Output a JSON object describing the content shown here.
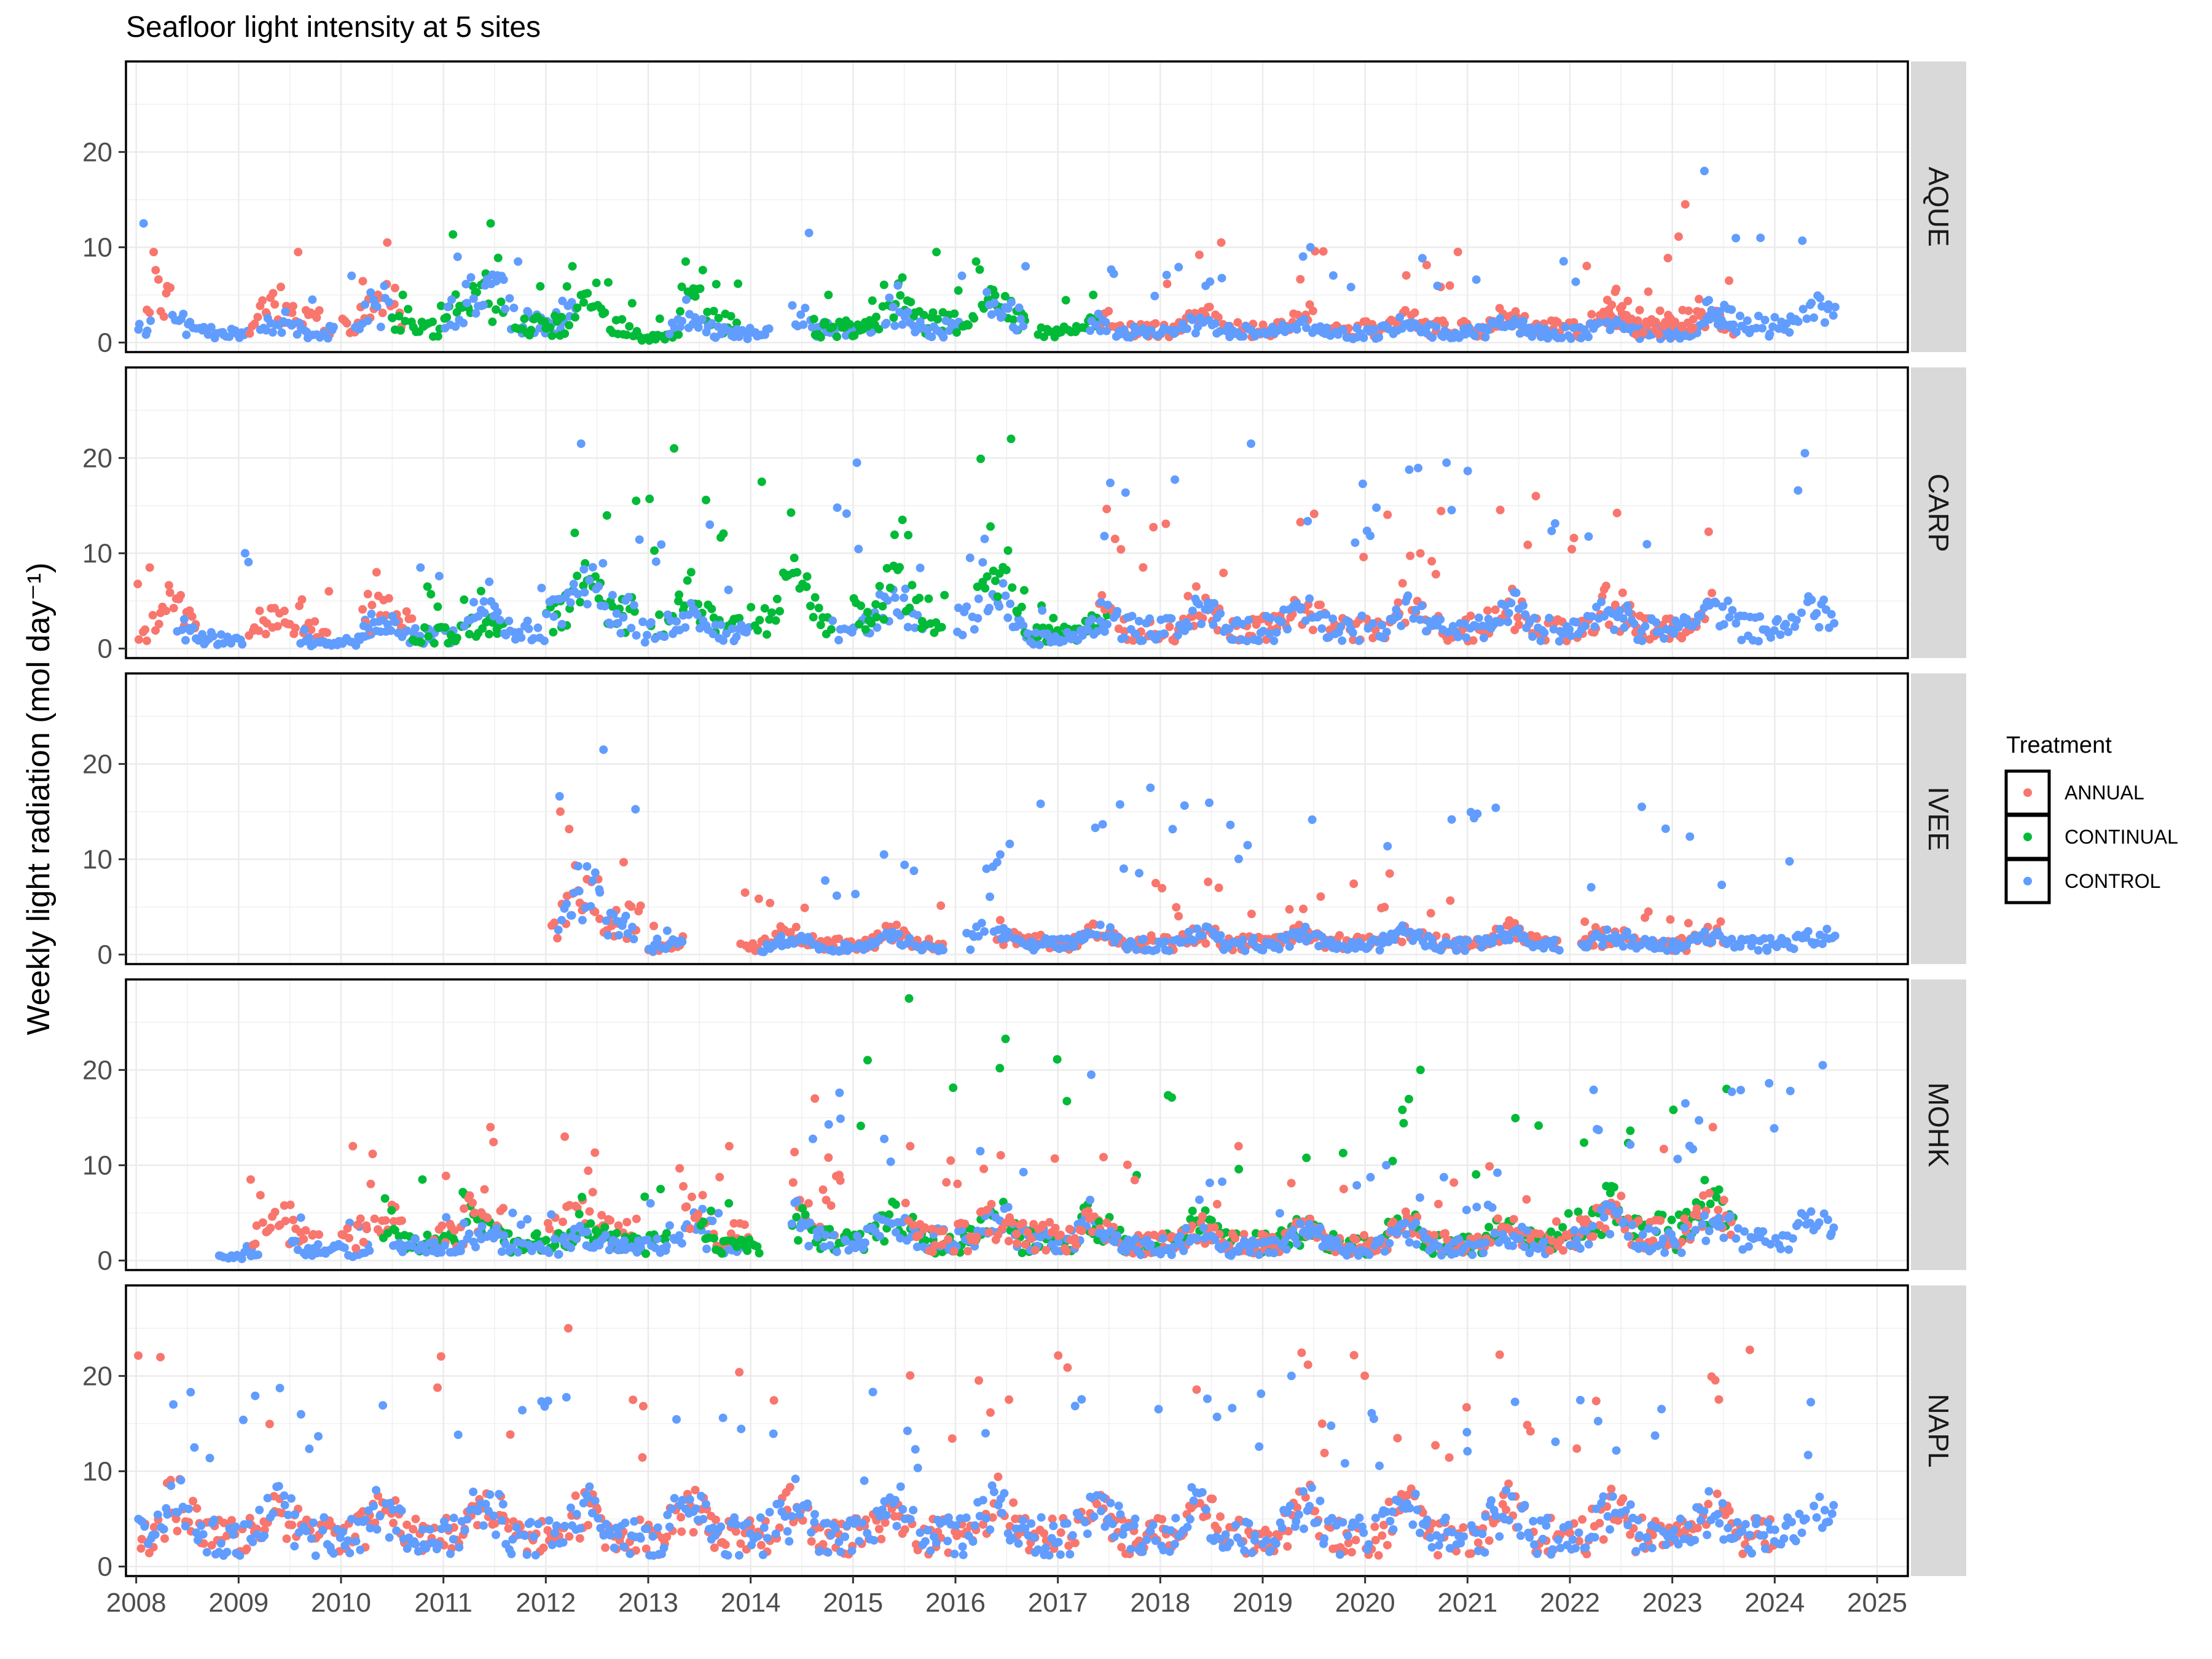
{
  "chart_data": {
    "type": "scatter",
    "title": "Seafloor light intensity at 5 sites",
    "ylabel": "Weekly light radiation (mol day⁻¹)",
    "xlabel": "",
    "x_ticks": [
      "2008",
      "2009",
      "2010",
      "2011",
      "2012",
      "2013",
      "2014",
      "2015",
      "2016",
      "2017",
      "2018",
      "2019",
      "2020",
      "2021",
      "2022",
      "2023",
      "2024",
      "2025"
    ],
    "xlim": [
      2007.9,
      2025.3
    ],
    "y_ticks": [
      0,
      10,
      20
    ],
    "ylim": [
      -1,
      29.5
    ],
    "grid": true,
    "facet_strip_position": "right",
    "legend": {
      "title": "Treatment",
      "position": "right",
      "items": [
        {
          "name": "ANNUAL",
          "color": "#F8766D"
        },
        {
          "name": "CONTINUAL",
          "color": "#00BA38"
        },
        {
          "name": "CONTROL",
          "color": "#619CFF"
        }
      ]
    },
    "panels": [
      {
        "site": "AQUE",
        "segments": [
          {
            "series": "CONTROL",
            "start": 2008.0,
            "end": 2008.15,
            "base": 2.0,
            "amp": 1.5,
            "peak": 12.5
          },
          {
            "series": "ANNUAL",
            "start": 2008.1,
            "end": 2008.35,
            "base": 3.0,
            "amp": 4.0,
            "peak": 9.5
          },
          {
            "series": "CONTROL",
            "start": 2008.35,
            "end": 2009.1,
            "base": 1.5,
            "amp": 1.5,
            "peak": 3.0
          },
          {
            "series": "ANNUAL",
            "start": 2009.1,
            "end": 2009.9,
            "base": 3.0,
            "amp": 3.0,
            "peak": 9.5
          },
          {
            "series": "CONTROL",
            "start": 2009.2,
            "end": 2009.95,
            "base": 1.5,
            "amp": 1.5,
            "peak": 4.5
          },
          {
            "series": "ANNUAL",
            "start": 2010.0,
            "end": 2010.6,
            "base": 3.5,
            "amp": 3.0,
            "peak": 10.5
          },
          {
            "series": "CONTROL",
            "start": 2010.1,
            "end": 2010.5,
            "base": 3.0,
            "amp": 2.0,
            "peak": 7.0
          },
          {
            "series": "CONTINUAL",
            "start": 2010.5,
            "end": 2011.0,
            "base": 2.0,
            "amp": 2.0,
            "peak": 5.0
          },
          {
            "series": "CONTINUAL",
            "start": 2011.0,
            "end": 2011.6,
            "base": 4.5,
            "amp": 2.5,
            "peak": 12.5
          },
          {
            "series": "CONTROL",
            "start": 2011.0,
            "end": 2011.7,
            "base": 4.5,
            "amp": 3.0,
            "peak": 9.0
          },
          {
            "series": "CONTROL",
            "start": 2011.7,
            "end": 2012.3,
            "base": 3.0,
            "amp": 2.5,
            "peak": 8.5
          },
          {
            "series": "CONTINUAL",
            "start": 2011.7,
            "end": 2012.9,
            "base": 2.5,
            "amp": 3.0,
            "peak": 8.0
          },
          {
            "series": "CONTINUAL",
            "start": 2012.9,
            "end": 2013.3,
            "base": 0.8,
            "amp": 0.8,
            "peak": 2.5
          },
          {
            "series": "CONTINUAL",
            "start": 2013.3,
            "end": 2013.9,
            "base": 3.5,
            "amp": 3.0,
            "peak": 8.5
          },
          {
            "series": "CONTROL",
            "start": 2013.2,
            "end": 2014.2,
            "base": 1.5,
            "amp": 1.5,
            "peak": 4.5
          },
          {
            "series": "CONTROL",
            "start": 2014.4,
            "end": 2015.2,
            "base": 2.0,
            "amp": 2.0,
            "peak": 11.5
          },
          {
            "series": "CONTINUAL",
            "start": 2014.6,
            "end": 2015.3,
            "base": 2.0,
            "amp": 2.5,
            "peak": 5.0
          },
          {
            "series": "CONTINUAL",
            "start": 2015.3,
            "end": 2016.0,
            "base": 3.0,
            "amp": 3.5,
            "peak": 9.5
          },
          {
            "series": "CONTROL",
            "start": 2015.3,
            "end": 2016.1,
            "base": 2.0,
            "amp": 2.5,
            "peak": 7.0
          },
          {
            "series": "CONTINUAL",
            "start": 2016.0,
            "end": 2016.7,
            "base": 3.0,
            "amp": 3.0,
            "peak": 8.5
          },
          {
            "series": "CONTROL",
            "start": 2016.3,
            "end": 2016.7,
            "base": 3.0,
            "amp": 2.5,
            "peak": 8.0
          },
          {
            "series": "CONTINUAL",
            "start": 2016.8,
            "end": 2017.4,
            "base": 1.5,
            "amp": 1.5,
            "peak": 5.0
          },
          {
            "series": "ANNUAL",
            "start": 2017.4,
            "end": 2023.6,
            "base": 2.0,
            "amp": 1.8,
            "peak": 10.5
          },
          {
            "series": "CONTROL",
            "start": 2017.3,
            "end": 2023.6,
            "base": 1.5,
            "amp": 1.3,
            "peak": 10.0
          },
          {
            "series": "ANNUAL",
            "start": 2022.3,
            "end": 2023.3,
            "base": 3.0,
            "amp": 3.0,
            "peak": 14.5
          },
          {
            "series": "CONTROL",
            "start": 2023.3,
            "end": 2024.6,
            "base": 2.5,
            "amp": 2.5,
            "peak": 18.0
          }
        ]
      },
      {
        "site": "CARP",
        "segments": [
          {
            "series": "ANNUAL",
            "start": 2008.0,
            "end": 2008.6,
            "base": 3.0,
            "amp": 3.0,
            "peak": 8.5
          },
          {
            "series": "CONTROL",
            "start": 2008.4,
            "end": 2009.1,
            "base": 1.5,
            "amp": 1.5,
            "peak": 10.0
          },
          {
            "series": "ANNUAL",
            "start": 2009.1,
            "end": 2009.9,
            "base": 2.5,
            "amp": 2.0,
            "peak": 6.0
          },
          {
            "series": "CONTROL",
            "start": 2009.6,
            "end": 2010.3,
            "base": 1.0,
            "amp": 1.0,
            "peak": 3.0
          },
          {
            "series": "ANNUAL",
            "start": 2010.2,
            "end": 2010.7,
            "base": 3.5,
            "amp": 2.5,
            "peak": 8.0
          },
          {
            "series": "CONTROL",
            "start": 2010.2,
            "end": 2011.1,
            "base": 2.0,
            "amp": 1.5,
            "peak": 8.5
          },
          {
            "series": "CONTINUAL",
            "start": 2010.7,
            "end": 2011.6,
            "base": 2.0,
            "amp": 2.0,
            "peak": 6.5
          },
          {
            "series": "CONTROL",
            "start": 2011.2,
            "end": 2012.0,
            "base": 3.0,
            "amp": 2.0,
            "peak": 7.0
          },
          {
            "series": "CONTINUAL",
            "start": 2012.0,
            "end": 2012.9,
            "base": 5.0,
            "amp": 4.0,
            "peak": 15.5
          },
          {
            "series": "CONTROL",
            "start": 2012.0,
            "end": 2012.9,
            "base": 5.0,
            "amp": 5.0,
            "peak": 21.5
          },
          {
            "series": "CONTINUAL",
            "start": 2013.0,
            "end": 2013.9,
            "base": 4.0,
            "amp": 4.0,
            "peak": 21.0
          },
          {
            "series": "CONTROL",
            "start": 2012.9,
            "end": 2014.0,
            "base": 2.5,
            "amp": 3.0,
            "peak": 13.0
          },
          {
            "series": "CONTINUAL",
            "start": 2014.0,
            "end": 2014.8,
            "base": 5.0,
            "amp": 4.0,
            "peak": 17.5
          },
          {
            "series": "CONTROL",
            "start": 2014.8,
            "end": 2015.7,
            "base": 3.0,
            "amp": 4.0,
            "peak": 19.5
          },
          {
            "series": "CONTINUAL",
            "start": 2015.0,
            "end": 2015.9,
            "base": 5.0,
            "amp": 4.0,
            "peak": 13.5
          },
          {
            "series": "CONTROL",
            "start": 2016.0,
            "end": 2016.7,
            "base": 4.0,
            "amp": 3.0,
            "peak": 11.5
          },
          {
            "series": "CONTINUAL",
            "start": 2016.2,
            "end": 2016.7,
            "base": 6.0,
            "amp": 6.0,
            "peak": 22.0
          },
          {
            "series": "CONTINUAL",
            "start": 2016.7,
            "end": 2017.5,
            "base": 2.0,
            "amp": 1.5,
            "peak": 4.5
          },
          {
            "series": "CONTROL",
            "start": 2016.7,
            "end": 2017.5,
            "base": 1.5,
            "amp": 1.5,
            "peak": 4.0
          },
          {
            "series": "ANNUAL",
            "start": 2017.4,
            "end": 2023.4,
            "base": 3.0,
            "amp": 3.0,
            "peak": 16.0
          },
          {
            "series": "CONTROL",
            "start": 2017.4,
            "end": 2023.4,
            "base": 3.0,
            "amp": 2.5,
            "peak": 21.5
          },
          {
            "series": "CONTROL",
            "start": 2023.4,
            "end": 2024.6,
            "base": 3.0,
            "amp": 3.0,
            "peak": 20.5
          }
        ]
      },
      {
        "site": "IVEE",
        "segments": [
          {
            "series": "ANNUAL",
            "start": 2012.05,
            "end": 2012.95,
            "base": 5.0,
            "amp": 5.0,
            "peak": 15.0
          },
          {
            "series": "CONTROL",
            "start": 2012.1,
            "end": 2012.9,
            "base": 5.0,
            "amp": 5.0,
            "peak": 21.5
          },
          {
            "series": "ANNUAL",
            "start": 2013.0,
            "end": 2013.35,
            "base": 1.0,
            "amp": 1.0,
            "peak": 3.0
          },
          {
            "series": "CONTROL",
            "start": 2013.0,
            "end": 2013.35,
            "base": 1.0,
            "amp": 1.0,
            "peak": 2.5
          },
          {
            "series": "ANNUAL",
            "start": 2013.9,
            "end": 2015.9,
            "base": 1.5,
            "amp": 1.5,
            "peak": 6.5
          },
          {
            "series": "CONTROL",
            "start": 2014.1,
            "end": 2015.9,
            "base": 1.0,
            "amp": 1.5,
            "peak": 10.5
          },
          {
            "series": "CONTROL",
            "start": 2016.1,
            "end": 2016.5,
            "base": 2.0,
            "amp": 2.0,
            "peak": 10.5
          },
          {
            "series": "ANNUAL",
            "start": 2016.4,
            "end": 2021.9,
            "base": 1.8,
            "amp": 1.5,
            "peak": 8.5
          },
          {
            "series": "CONTROL",
            "start": 2016.4,
            "end": 2021.9,
            "base": 1.5,
            "amp": 1.5,
            "peak": 17.5
          },
          {
            "series": "ANNUAL",
            "start": 2022.1,
            "end": 2023.5,
            "base": 1.5,
            "amp": 1.2,
            "peak": 4.5
          },
          {
            "series": "CONTROL",
            "start": 2022.1,
            "end": 2024.6,
            "base": 1.5,
            "amp": 1.2,
            "peak": 15.5
          }
        ]
      },
      {
        "site": "MOHK",
        "segments": [
          {
            "series": "CONTROL",
            "start": 2008.8,
            "end": 2009.2,
            "base": 0.5,
            "amp": 0.5,
            "peak": 1.5
          },
          {
            "series": "ANNUAL",
            "start": 2009.1,
            "end": 2009.8,
            "base": 3.0,
            "amp": 3.0,
            "peak": 8.5
          },
          {
            "series": "CONTROL",
            "start": 2009.5,
            "end": 2010.3,
            "base": 1.5,
            "amp": 1.0,
            "peak": 4.5
          },
          {
            "series": "ANNUAL",
            "start": 2010.0,
            "end": 2010.6,
            "base": 3.5,
            "amp": 3.0,
            "peak": 12.0
          },
          {
            "series": "CONTINUAL",
            "start": 2010.4,
            "end": 2012.0,
            "base": 2.5,
            "amp": 2.5,
            "peak": 8.5
          },
          {
            "series": "ANNUAL",
            "start": 2010.9,
            "end": 2011.6,
            "base": 4.0,
            "amp": 4.0,
            "peak": 14.0
          },
          {
            "series": "CONTROL",
            "start": 2010.5,
            "end": 2012.0,
            "base": 2.0,
            "amp": 1.5,
            "peak": 5.0
          },
          {
            "series": "ANNUAL",
            "start": 2012.0,
            "end": 2012.9,
            "base": 4.0,
            "amp": 3.5,
            "peak": 13.0
          },
          {
            "series": "CONTINUAL",
            "start": 2012.0,
            "end": 2013.2,
            "base": 2.5,
            "amp": 2.0,
            "peak": 7.5
          },
          {
            "series": "CONTROL",
            "start": 2012.0,
            "end": 2013.9,
            "base": 2.0,
            "amp": 2.0,
            "peak": 6.0
          },
          {
            "series": "ANNUAL",
            "start": 2013.3,
            "end": 2014.0,
            "base": 4.0,
            "amp": 3.0,
            "peak": 12.0
          },
          {
            "series": "CONTINUAL",
            "start": 2013.5,
            "end": 2014.1,
            "base": 2.5,
            "amp": 2.0,
            "peak": 6.0
          },
          {
            "series": "ANNUAL",
            "start": 2014.4,
            "end": 2014.9,
            "base": 8.0,
            "amp": 4.0,
            "peak": 17.0
          },
          {
            "series": "CONTINUAL",
            "start": 2014.4,
            "end": 2017.4,
            "base": 3.0,
            "amp": 3.0,
            "peak": 27.5
          },
          {
            "series": "CONTROL",
            "start": 2014.4,
            "end": 2017.4,
            "base": 3.0,
            "amp": 3.0,
            "peak": 19.5
          },
          {
            "series": "ANNUAL",
            "start": 2015.5,
            "end": 2017.4,
            "base": 3.5,
            "amp": 3.0,
            "peak": 12.0
          },
          {
            "series": "CONTINUAL",
            "start": 2017.4,
            "end": 2021.8,
            "base": 2.5,
            "amp": 2.5,
            "peak": 20.0
          },
          {
            "series": "ANNUAL",
            "start": 2017.4,
            "end": 2021.8,
            "base": 2.5,
            "amp": 2.0,
            "peak": 12.0
          },
          {
            "series": "CONTROL",
            "start": 2017.4,
            "end": 2021.8,
            "base": 2.0,
            "amp": 2.0,
            "peak": 10.0
          },
          {
            "series": "CONTINUAL",
            "start": 2021.8,
            "end": 2023.6,
            "base": 4.5,
            "amp": 4.0,
            "peak": 18.0
          },
          {
            "series": "ANNUAL",
            "start": 2021.8,
            "end": 2023.6,
            "base": 4.0,
            "amp": 3.5,
            "peak": 14.0
          },
          {
            "series": "CONTROL",
            "start": 2022.0,
            "end": 2024.6,
            "base": 3.0,
            "amp": 3.0,
            "peak": 20.5
          }
        ]
      },
      {
        "site": "NAPL",
        "segments": [
          {
            "series": "ANNUAL",
            "start": 2008.0,
            "end": 2024.0,
            "base": 4.5,
            "amp": 4.0,
            "peak": 25.0
          },
          {
            "series": "CONTROL",
            "start": 2008.0,
            "end": 2024.6,
            "base": 4.5,
            "amp": 4.0,
            "peak": 20.0
          }
        ]
      }
    ]
  }
}
